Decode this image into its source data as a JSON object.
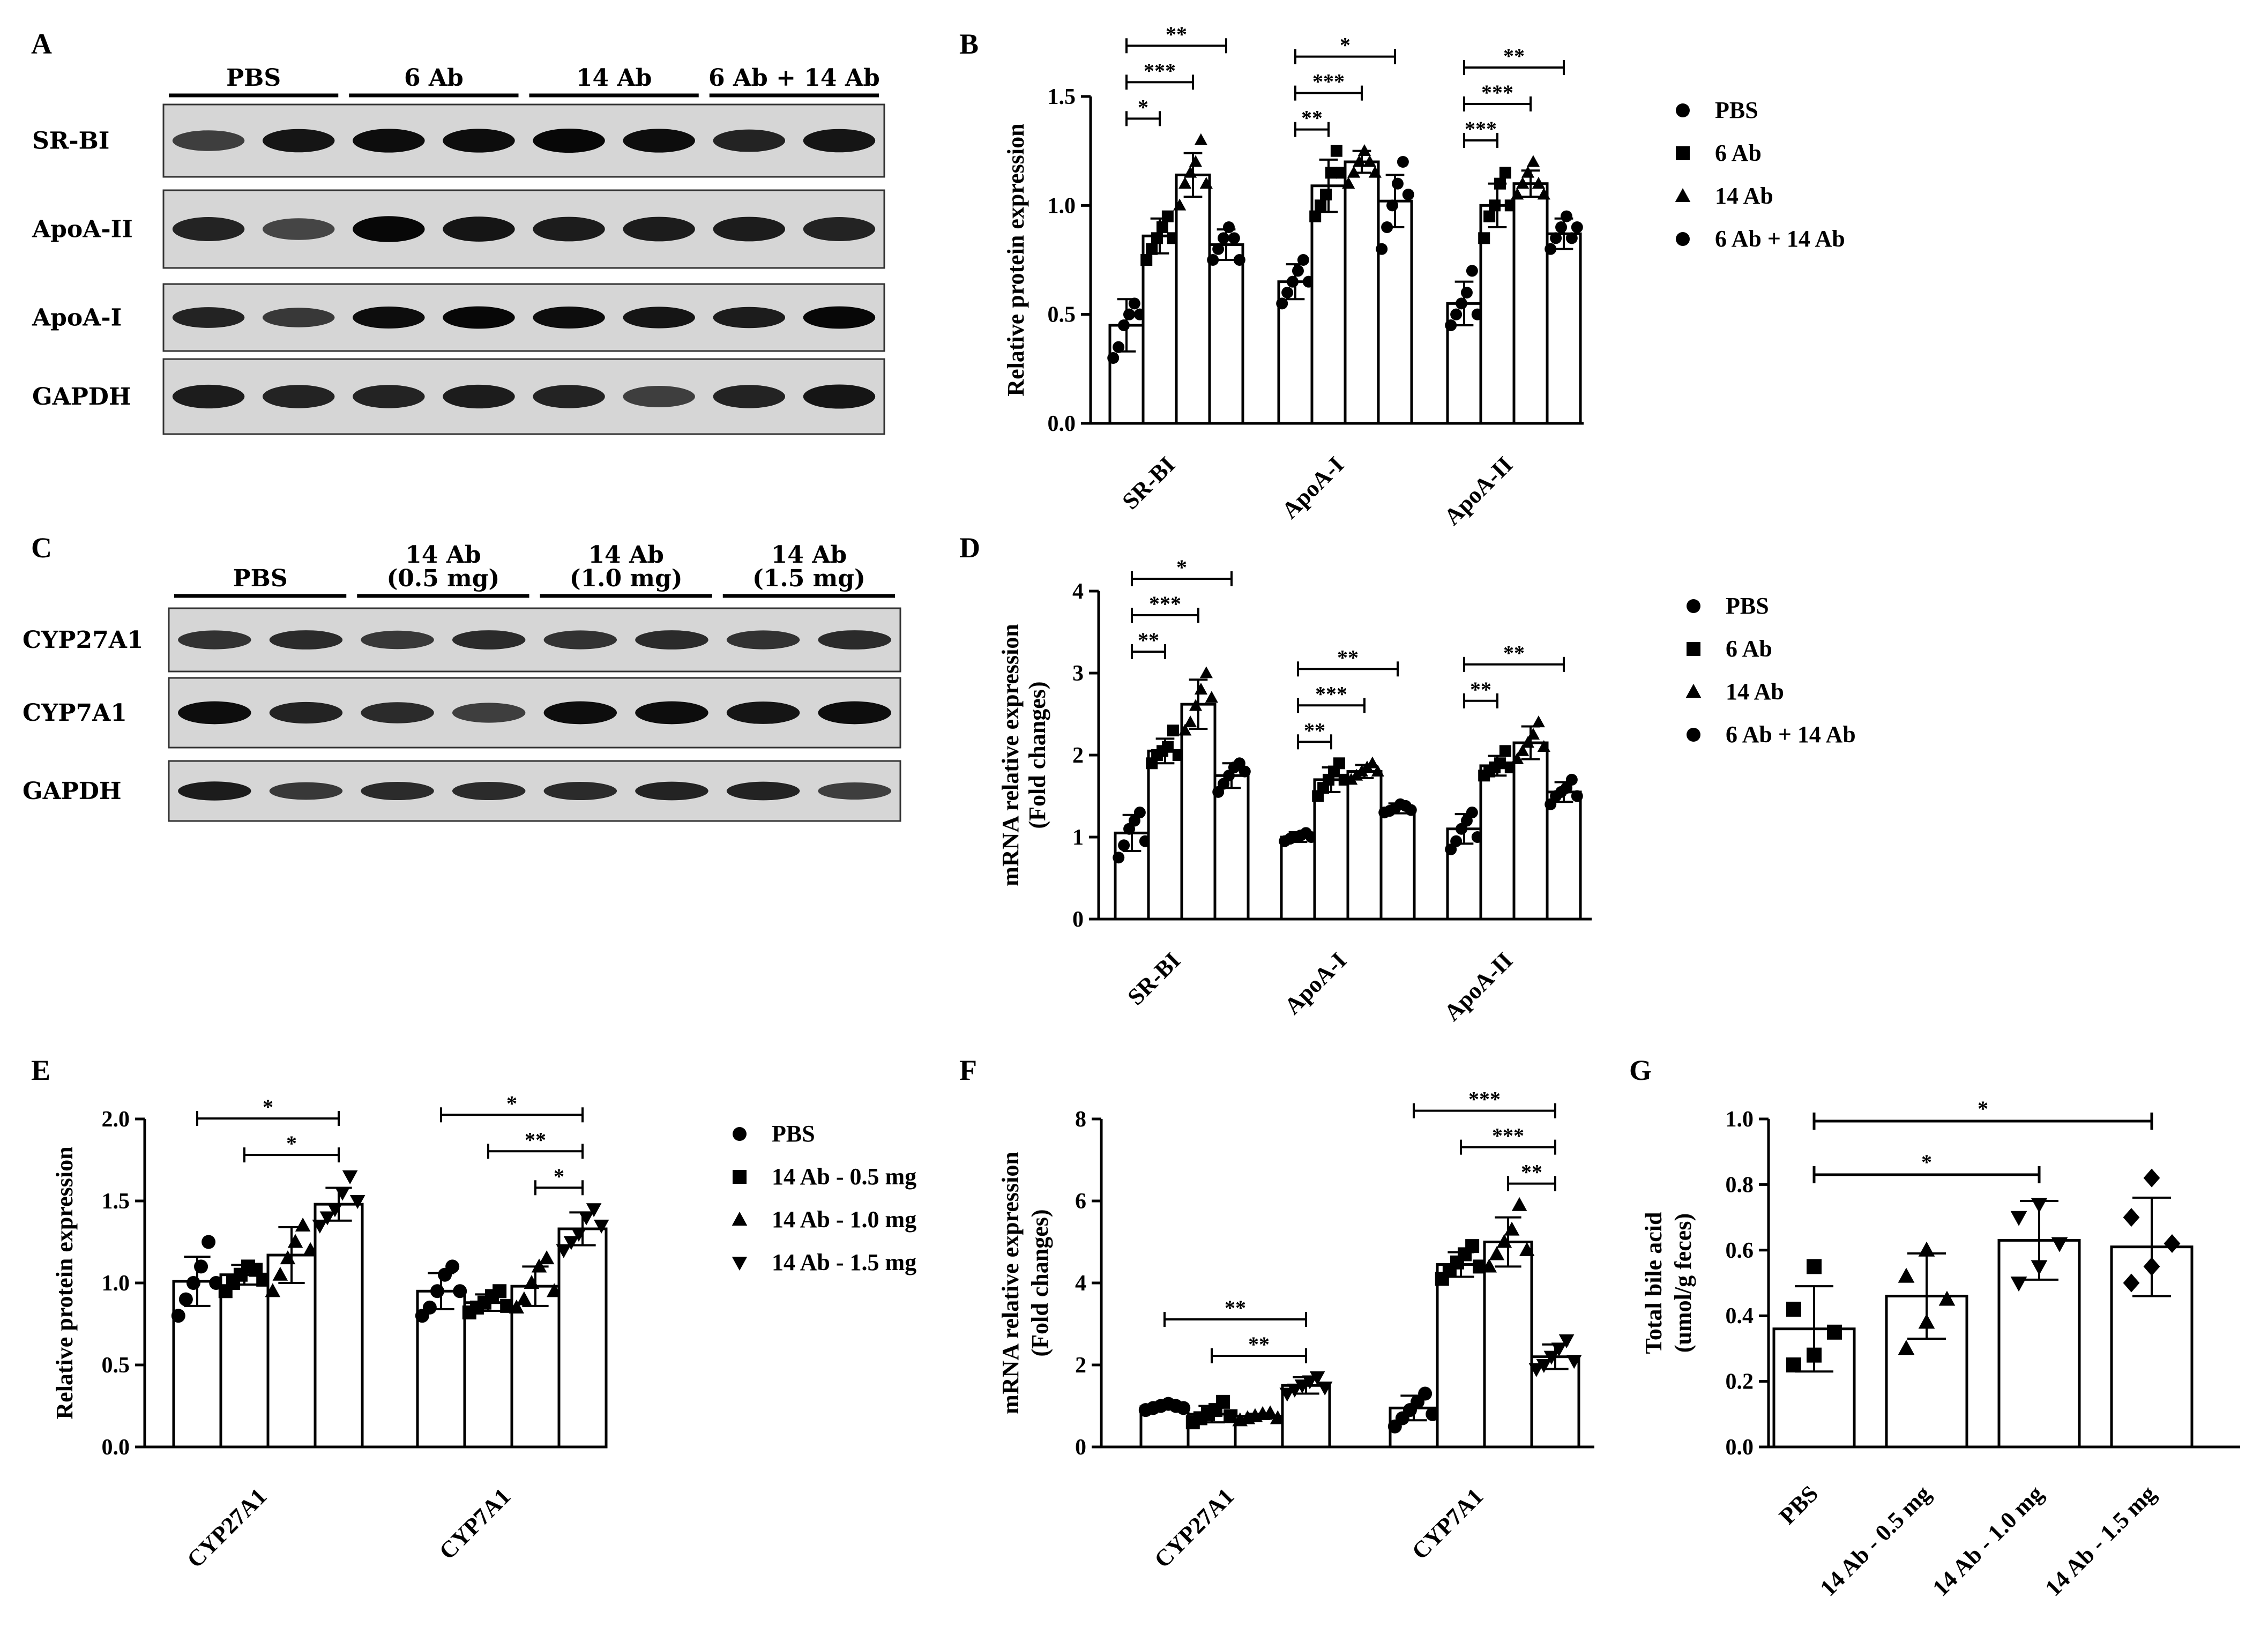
{
  "panels": {
    "A": "A",
    "B": "B",
    "C": "C",
    "D": "D",
    "E": "E",
    "F": "F",
    "G": "G"
  },
  "blots": [
    {
      "id": "A",
      "groups": [
        "PBS",
        "6 Ab",
        "14 Ab",
        "6 Ab + 14 Ab"
      ],
      "rows": [
        {
          "label": "SR-BI",
          "bands": [
            0.55,
            0.85,
            0.9,
            0.9,
            0.95,
            0.9,
            0.75,
            0.85
          ]
        },
        {
          "label": "ApoA-II",
          "bands": [
            0.75,
            0.5,
            0.95,
            0.85,
            0.8,
            0.8,
            0.8,
            0.75
          ]
        },
        {
          "label": "ApoA-I",
          "bands": [
            0.75,
            0.6,
            0.9,
            0.95,
            0.9,
            0.85,
            0.8,
            0.95
          ]
        },
        {
          "label": "GAPDH",
          "bands": [
            0.8,
            0.75,
            0.75,
            0.8,
            0.75,
            0.55,
            0.75,
            0.85
          ]
        }
      ]
    },
    {
      "id": "C",
      "groups": [
        "PBS",
        "14 Ab\n(0.5 mg)",
        "14 Ab\n(1.0 mg)",
        "14 Ab\n(1.5 mg)"
      ],
      "rows": [
        {
          "label": "CYP27A1",
          "bands": [
            0.65,
            0.7,
            0.6,
            0.7,
            0.65,
            0.7,
            0.65,
            0.7
          ]
        },
        {
          "label": "CYP7A1",
          "bands": [
            0.9,
            0.75,
            0.7,
            0.55,
            0.9,
            0.9,
            0.85,
            0.9
          ]
        },
        {
          "label": "GAPDH",
          "bands": [
            0.8,
            0.6,
            0.7,
            0.7,
            0.7,
            0.75,
            0.75,
            0.55
          ]
        }
      ]
    }
  ],
  "chart_data": [
    {
      "id": "B",
      "type": "bar",
      "ylabel": "Relative protein expression",
      "ylim": [
        0,
        1.5
      ],
      "yticks": [
        "0.0",
        "0.5",
        "1.0",
        "1.5"
      ],
      "categories": [
        "SR-BI",
        "ApoA-I",
        "ApoA-II"
      ],
      "legend": {
        "entries": [
          "PBS",
          "6 Ab",
          "14 Ab",
          "6 Ab + 14 Ab"
        ],
        "markers": [
          "circle",
          "square",
          "triangle",
          "circle"
        ]
      },
      "series": [
        {
          "name": "PBS",
          "values": [
            0.45,
            0.65,
            0.55
          ],
          "errors": [
            0.12,
            0.08,
            0.1
          ]
        },
        {
          "name": "6 Ab",
          "values": [
            0.86,
            1.09,
            1.0
          ],
          "errors": [
            0.08,
            0.12,
            0.1
          ]
        },
        {
          "name": "14 Ab",
          "values": [
            1.14,
            1.2,
            1.1
          ],
          "errors": [
            0.1,
            0.05,
            0.06
          ]
        },
        {
          "name": "6 Ab + 14 Ab",
          "values": [
            0.82,
            1.02,
            0.87
          ],
          "errors": [
            0.07,
            0.12,
            0.07
          ]
        }
      ],
      "points": [
        [
          [
            0.3,
            0.35,
            0.45,
            0.5,
            0.55,
            0.5
          ],
          [
            0.75,
            0.8,
            0.85,
            0.9,
            0.95,
            0.85
          ],
          [
            1.0,
            1.1,
            1.15,
            1.2,
            1.3,
            1.1
          ],
          [
            0.75,
            0.8,
            0.85,
            0.9,
            0.85,
            0.75
          ]
        ],
        [
          [
            0.55,
            0.6,
            0.65,
            0.7,
            0.75,
            0.65
          ],
          [
            0.95,
            1.0,
            1.05,
            1.15,
            1.25,
            1.15
          ],
          [
            1.1,
            1.15,
            1.2,
            1.25,
            1.2,
            1.15
          ],
          [
            0.8,
            0.9,
            1.0,
            1.1,
            1.2,
            1.05
          ]
        ],
        [
          [
            0.45,
            0.5,
            0.55,
            0.6,
            0.7,
            0.5
          ],
          [
            0.85,
            0.95,
            1.0,
            1.1,
            1.15,
            1.0
          ],
          [
            1.05,
            1.1,
            1.15,
            1.2,
            1.1,
            1.05
          ],
          [
            0.8,
            0.85,
            0.9,
            0.95,
            0.85,
            0.9
          ]
        ]
      ],
      "significance": [
        {
          "cat": 0,
          "from": 0,
          "to": 1,
          "label": "*"
        },
        {
          "cat": 0,
          "from": 0,
          "to": 2,
          "label": "***"
        },
        {
          "cat": 0,
          "from": 0,
          "to": 3,
          "label": "**"
        },
        {
          "cat": 1,
          "from": 0,
          "to": 1,
          "label": "**"
        },
        {
          "cat": 1,
          "from": 0,
          "to": 2,
          "label": "***"
        },
        {
          "cat": 1,
          "from": 0,
          "to": 3,
          "label": "*"
        },
        {
          "cat": 2,
          "from": 0,
          "to": 1,
          "label": "***"
        },
        {
          "cat": 2,
          "from": 0,
          "to": 2,
          "label": "***"
        },
        {
          "cat": 2,
          "from": 0,
          "to": 3,
          "label": "**"
        }
      ]
    },
    {
      "id": "D",
      "type": "bar",
      "ylabel": "mRNA relative expression",
      "ylabel2": "(Fold changes)",
      "ylim": [
        0,
        4
      ],
      "yticks": [
        "0",
        "1",
        "2",
        "3",
        "4"
      ],
      "categories": [
        "SR-BI",
        "ApoA-I",
        "ApoA-II"
      ],
      "legend": {
        "entries": [
          "PBS",
          "6 Ab",
          "14 Ab",
          "6 Ab + 14 Ab"
        ],
        "markers": [
          "circle",
          "square",
          "triangle",
          "circle"
        ]
      },
      "series": [
        {
          "name": "PBS",
          "values": [
            1.05,
            1.0,
            1.1
          ],
          "errors": [
            0.22,
            0.06,
            0.18
          ]
        },
        {
          "name": "6 Ab",
          "values": [
            2.05,
            1.7,
            1.87
          ],
          "errors": [
            0.15,
            0.15,
            0.12
          ]
        },
        {
          "name": "14 Ab",
          "values": [
            2.62,
            1.8,
            2.15
          ],
          "errors": [
            0.3,
            0.08,
            0.2
          ]
        },
        {
          "name": "6 Ab + 14 Ab",
          "values": [
            1.75,
            1.35,
            1.55
          ],
          "errors": [
            0.15,
            0.06,
            0.12
          ]
        }
      ],
      "points": [
        [
          [
            0.75,
            0.9,
            1.1,
            1.2,
            1.3,
            0.95
          ],
          [
            1.9,
            2.0,
            2.05,
            2.1,
            2.3,
            2.0
          ],
          [
            2.3,
            2.4,
            2.6,
            2.8,
            3.0,
            2.7
          ],
          [
            1.55,
            1.65,
            1.75,
            1.85,
            1.9,
            1.8
          ]
        ],
        [
          [
            0.95,
            0.98,
            1.0,
            1.02,
            1.05,
            1.0
          ],
          [
            1.5,
            1.6,
            1.7,
            1.8,
            1.9,
            1.7
          ],
          [
            1.7,
            1.75,
            1.8,
            1.85,
            1.9,
            1.8
          ],
          [
            1.3,
            1.32,
            1.35,
            1.4,
            1.38,
            1.33
          ]
        ],
        [
          [
            0.85,
            0.95,
            1.1,
            1.2,
            1.3,
            1.0
          ],
          [
            1.75,
            1.8,
            1.85,
            1.9,
            2.05,
            1.85
          ],
          [
            1.95,
            2.05,
            2.15,
            2.25,
            2.4,
            2.1
          ],
          [
            1.4,
            1.5,
            1.55,
            1.6,
            1.7,
            1.5
          ]
        ]
      ],
      "significance": [
        {
          "cat": 0,
          "from": 0,
          "to": 1,
          "label": "**"
        },
        {
          "cat": 0,
          "from": 0,
          "to": 2,
          "label": "***"
        },
        {
          "cat": 0,
          "from": 0,
          "to": 3,
          "label": "*"
        },
        {
          "cat": 1,
          "from": 0,
          "to": 1,
          "label": "**"
        },
        {
          "cat": 1,
          "from": 0,
          "to": 2,
          "label": "***"
        },
        {
          "cat": 1,
          "from": 0,
          "to": 3,
          "label": "**"
        },
        {
          "cat": 2,
          "from": 0,
          "to": 1,
          "label": "**"
        },
        {
          "cat": 2,
          "from": 0,
          "to": 3,
          "label": "**"
        }
      ]
    },
    {
      "id": "E",
      "type": "bar",
      "ylabel": "Relative protein expression",
      "ylim": [
        0,
        2.0
      ],
      "yticks": [
        "0.0",
        "0.5",
        "1.0",
        "1.5",
        "2.0"
      ],
      "categories": [
        "CYP27A1",
        "CYP7A1"
      ],
      "legend": {
        "entries": [
          "PBS",
          "14 Ab - 0.5 mg",
          "14 Ab - 1.0 mg",
          "14 Ab - 1.5 mg"
        ],
        "markers": [
          "circle",
          "square",
          "triangle",
          "invtriangle"
        ]
      },
      "series": [
        {
          "name": "PBS",
          "values": [
            1.01,
            0.95
          ],
          "errors": [
            0.15,
            0.11
          ]
        },
        {
          "name": "14 Ab - 0.5 mg",
          "values": [
            1.05,
            0.88
          ],
          "errors": [
            0.06,
            0.05
          ]
        },
        {
          "name": "14 Ab - 1.0 mg",
          "values": [
            1.17,
            0.98
          ],
          "errors": [
            0.17,
            0.12
          ]
        },
        {
          "name": "14 Ab - 1.5 mg",
          "values": [
            1.48,
            1.33
          ],
          "errors": [
            0.1,
            0.1
          ]
        }
      ],
      "points": [
        [
          [
            0.8,
            0.9,
            1.0,
            1.1,
            1.25,
            1.0
          ],
          [
            0.95,
            1.0,
            1.05,
            1.1,
            1.08,
            1.02
          ],
          [
            0.95,
            1.05,
            1.15,
            1.25,
            1.35,
            1.2
          ],
          [
            1.35,
            1.4,
            1.45,
            1.55,
            1.65,
            1.5
          ]
        ],
        [
          [
            0.8,
            0.85,
            0.95,
            1.05,
            1.1,
            0.95
          ],
          [
            0.82,
            0.85,
            0.88,
            0.92,
            0.95,
            0.86
          ],
          [
            0.85,
            0.9,
            1.0,
            1.1,
            1.15,
            0.95
          ],
          [
            1.2,
            1.25,
            1.3,
            1.4,
            1.45,
            1.35
          ]
        ]
      ],
      "significance": [
        {
          "cat": 0,
          "from": 0,
          "to": 3,
          "label": "*"
        },
        {
          "cat": 0,
          "from": 1,
          "to": 3,
          "label": "*"
        },
        {
          "cat": 1,
          "from": 0,
          "to": 3,
          "label": "*"
        },
        {
          "cat": 1,
          "from": 1,
          "to": 3,
          "label": "**"
        },
        {
          "cat": 1,
          "from": 2,
          "to": 3,
          "label": "*"
        }
      ]
    },
    {
      "id": "F",
      "type": "bar",
      "ylabel": "mRNA relative expression",
      "ylabel2": "(Fold changes)",
      "ylim": [
        0,
        8
      ],
      "yticks": [
        "0",
        "2",
        "4",
        "6",
        "8"
      ],
      "categories": [
        "CYP27A1",
        "CYP7A1"
      ],
      "series": [
        {
          "name": "PBS",
          "values": [
            0.98,
            0.95
          ],
          "errors": [
            0.06,
            0.3
          ]
        },
        {
          "name": "14 Ab - 0.5 mg",
          "values": [
            0.8,
            4.45
          ],
          "errors": [
            0.2,
            0.3
          ]
        },
        {
          "name": "14 Ab - 1.0 mg",
          "values": [
            0.75,
            5.0
          ],
          "errors": [
            0.06,
            0.6
          ]
        },
        {
          "name": "14 Ab - 1.5 mg",
          "values": [
            1.5,
            2.2
          ],
          "errors": [
            0.2,
            0.3
          ]
        }
      ],
      "points": [
        [
          [
            0.9,
            0.95,
            1.0,
            1.05,
            1.0,
            0.95
          ],
          [
            0.6,
            0.7,
            0.8,
            0.9,
            1.1,
            0.75
          ],
          [
            0.65,
            0.7,
            0.75,
            0.8,
            0.82,
            0.7
          ],
          [
            1.3,
            1.4,
            1.5,
            1.6,
            1.7,
            1.45
          ]
        ],
        [
          [
            0.5,
            0.7,
            0.9,
            1.1,
            1.3,
            0.8
          ],
          [
            4.1,
            4.3,
            4.5,
            4.7,
            4.9,
            4.4
          ],
          [
            4.4,
            4.7,
            5.0,
            5.3,
            5.9,
            4.8
          ],
          [
            1.9,
            2.0,
            2.2,
            2.4,
            2.6,
            2.1
          ]
        ]
      ],
      "significance": [
        {
          "cat": 0,
          "from": 0,
          "to": 3,
          "label": "**"
        },
        {
          "cat": 0,
          "from": 1,
          "to": 3,
          "label": "**"
        },
        {
          "cat": 1,
          "from": 0,
          "to": 3,
          "label": "***"
        },
        {
          "cat": 1,
          "from": 1,
          "to": 3,
          "label": "***"
        },
        {
          "cat": 1,
          "from": 2,
          "to": 3,
          "label": "**"
        }
      ]
    },
    {
      "id": "G",
      "type": "bar",
      "ylabel": "Total bile acid",
      "ylabel2": "(umol/g feces)",
      "ylim": [
        0,
        1.0
      ],
      "yticks": [
        "0.0",
        "0.2",
        "0.4",
        "0.6",
        "0.8",
        "1.0"
      ],
      "categories": [
        "PBS",
        "14 Ab - 0.5 mg",
        "14 Ab - 1.0 mg",
        "14 Ab - 1.5 mg"
      ],
      "markers": [
        "square",
        "triangle",
        "invtriangle",
        "diamond"
      ],
      "values": [
        0.36,
        0.46,
        0.63,
        0.61
      ],
      "errors": [
        0.13,
        0.13,
        0.12,
        0.15
      ],
      "points": [
        [
          0.25,
          0.28,
          0.35,
          0.42,
          0.55
        ],
        [
          0.3,
          0.38,
          0.45,
          0.52,
          0.6
        ],
        [
          0.5,
          0.55,
          0.62,
          0.7,
          0.74
        ],
        [
          0.5,
          0.55,
          0.62,
          0.7,
          0.82
        ]
      ],
      "significance": [
        {
          "from": 0,
          "to": 2,
          "label": "*"
        },
        {
          "from": 0,
          "to": 3,
          "label": "*"
        }
      ]
    }
  ]
}
